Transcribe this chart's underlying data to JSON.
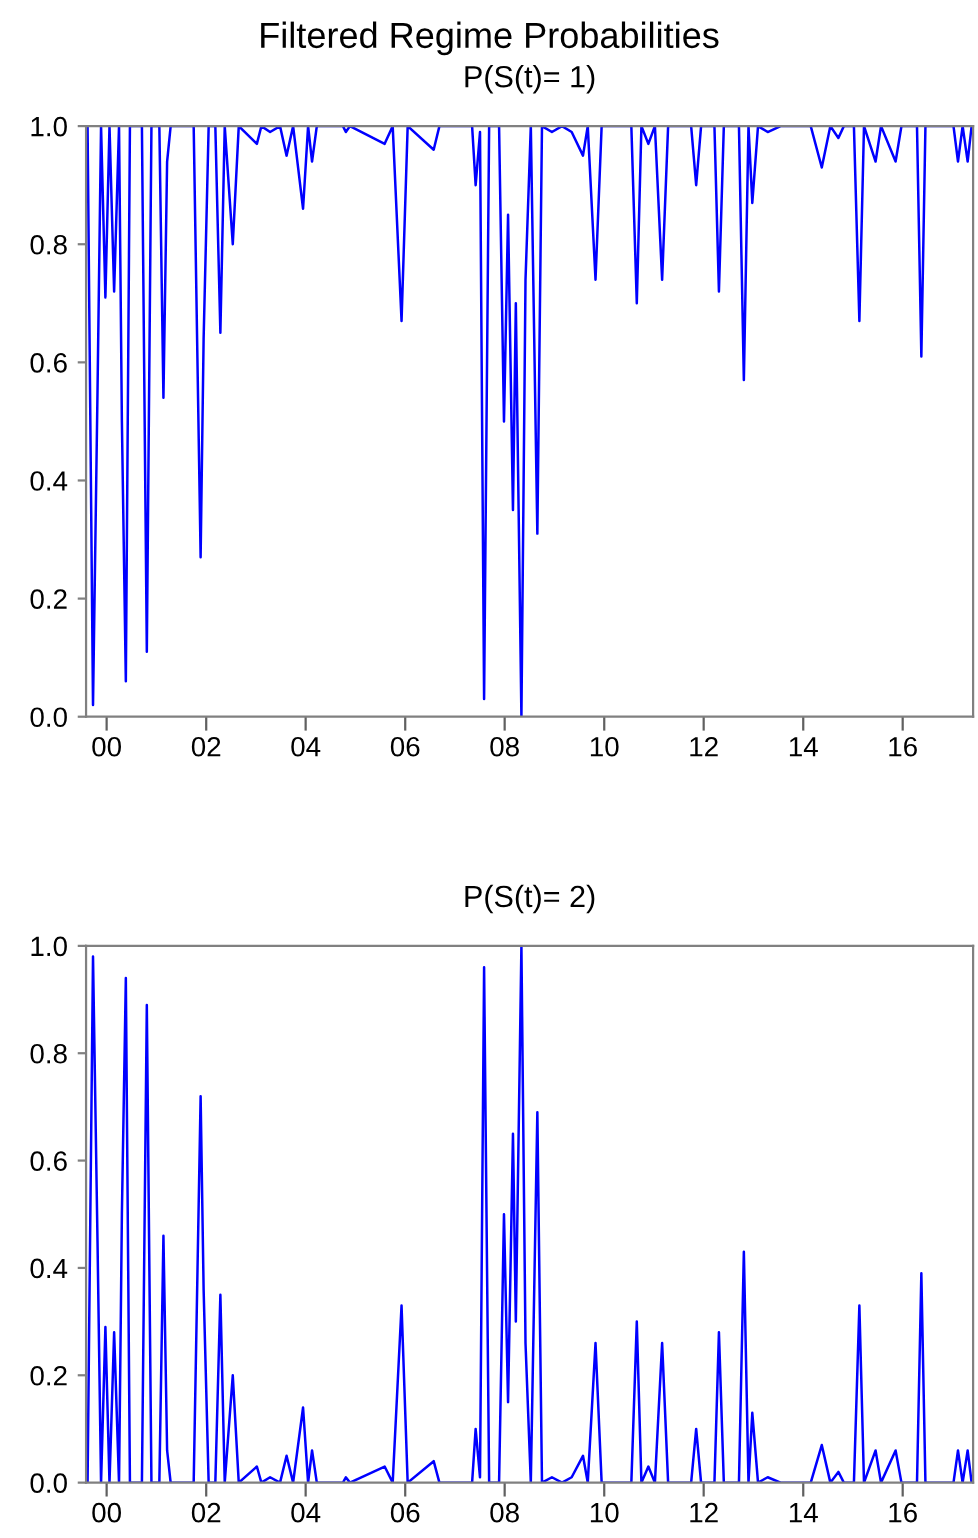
{
  "chart_data": [
    {
      "type": "line",
      "title": "Filtered Regime Probabilities",
      "subtitle": "P(S(t)= 1)",
      "x": [
        "1999-08-14",
        "1999-09-23",
        "1999-10-26",
        "1999-11-21",
        "1999-12-23",
        "2000-01-22",
        "2000-02-25",
        "2000-04-01",
        "2000-04-22",
        "2000-05-21",
        "2000-06-20",
        "2000-09-16",
        "2000-10-22",
        "2000-11-25",
        "2001-01-22",
        "2001-02-21",
        "2001-03-20",
        "2001-04-15",
        "2001-10-01",
        "2001-11-21",
        "2001-12-13",
        "2002-01-19",
        "2002-03-09",
        "2002-04-15",
        "2002-05-17",
        "2002-07-15",
        "2002-08-28",
        "2003-01-08",
        "2003-02-10",
        "2003-04-15",
        "2003-06-27",
        "2003-08-14",
        "2003-10-01",
        "2003-12-13",
        "2004-01-19",
        "2004-02-17",
        "2004-03-23",
        "2004-10-01",
        "2004-10-22",
        "2004-11-21",
        "2005-08-03",
        "2005-10-01",
        "2005-12-05",
        "2006-01-19",
        "2006-07-29",
        "2006-09-09",
        "2007-05-07",
        "2007-06-02",
        "2007-07-04",
        "2007-08-03",
        "2007-09-09",
        "2007-11-21",
        "2007-12-27",
        "2008-01-26",
        "2008-03-02",
        "2008-03-23",
        "2008-05-03",
        "2008-06-02",
        "2008-07-11",
        "2008-08-28",
        "2008-10-01",
        "2008-12-13",
        "2009-02-25",
        "2009-05-07",
        "2009-07-29",
        "2009-09-02",
        "2009-10-29",
        "2009-12-13",
        "2010-07-19",
        "2010-08-28",
        "2010-10-01",
        "2010-11-21",
        "2011-01-08",
        "2011-03-02",
        "2011-04-15",
        "2011-10-01",
        "2011-11-07",
        "2011-12-13",
        "2012-03-20",
        "2012-04-22",
        "2012-05-28",
        "2012-09-16",
        "2012-10-22",
        "2012-11-25",
        "2012-12-23",
        "2013-02-03",
        "2013-04-15",
        "2013-07-19",
        "2014-02-25",
        "2014-05-17",
        "2014-07-19",
        "2014-09-16",
        "2014-10-26",
        "2015-01-08",
        "2015-02-17",
        "2015-03-23",
        "2015-06-16",
        "2015-07-26",
        "2015-11-10",
        "2015-12-23",
        "2016-04-15",
        "2016-05-17",
        "2016-06-16",
        "2017-01-08",
        "2017-02-10",
        "2017-03-16",
        "2017-04-22",
        "2017-05-21"
      ],
      "series": [
        {
          "color": "#0000ff",
          "values": [
            1.0,
            0.02,
            0.55,
            1.0,
            0.71,
            1.0,
            0.72,
            1.0,
            0.5,
            0.06,
            1.0,
            1.0,
            0.11,
            1.0,
            1.0,
            0.54,
            0.94,
            1.0,
            1.0,
            0.27,
            0.64,
            1.0,
            1.0,
            0.65,
            1.0,
            0.8,
            1.0,
            0.97,
            1.0,
            0.99,
            1.0,
            0.95,
            1.0,
            0.86,
            1.0,
            0.94,
            1.0,
            1.0,
            0.99,
            1.0,
            0.97,
            1.0,
            0.67,
            1.0,
            0.96,
            1.0,
            1.0,
            0.9,
            0.99,
            0.03,
            1.0,
            1.0,
            0.5,
            0.85,
            0.35,
            0.7,
            0.0,
            0.74,
            1.0,
            0.31,
            1.0,
            0.99,
            1.0,
            0.99,
            0.95,
            1.0,
            0.74,
            1.0,
            1.0,
            0.7,
            1.0,
            0.97,
            1.0,
            0.74,
            1.0,
            1.0,
            0.9,
            1.0,
            1.0,
            0.72,
            1.0,
            1.0,
            0.57,
            1.0,
            0.87,
            1.0,
            0.99,
            1.0,
            1.0,
            0.93,
            1.0,
            0.98,
            1.0,
            1.0,
            0.67,
            1.0,
            0.94,
            1.0,
            0.94,
            1.0,
            1.0,
            0.61,
            1.0,
            1.0,
            0.94,
            1.0,
            0.94,
            1.0
          ]
        }
      ],
      "xlim": [
        "1999-08-03",
        "2017-06-01"
      ],
      "ylim": [
        0.0,
        1.0
      ],
      "xticks": [
        {
          "value": "2000",
          "label": "00"
        },
        {
          "value": "2002",
          "label": "02"
        },
        {
          "value": "2004",
          "label": "04"
        },
        {
          "value": "2006",
          "label": "06"
        },
        {
          "value": "2008",
          "label": "08"
        },
        {
          "value": "2010",
          "label": "10"
        },
        {
          "value": "2012",
          "label": "12"
        },
        {
          "value": "2014",
          "label": "14"
        },
        {
          "value": "2016",
          "label": "16"
        }
      ],
      "yticks": [
        {
          "value": 0.0,
          "label": "0.0"
        },
        {
          "value": 0.2,
          "label": "0.2"
        },
        {
          "value": 0.4,
          "label": "0.4"
        },
        {
          "value": 0.6,
          "label": "0.6"
        },
        {
          "value": 0.8,
          "label": "0.8"
        },
        {
          "value": 1.0,
          "label": "1.0"
        }
      ],
      "grid": false
    },
    {
      "type": "line",
      "subtitle": "P(S(t)= 2)",
      "x": [
        "1999-08-14",
        "1999-09-23",
        "1999-10-26",
        "1999-11-21",
        "1999-12-23",
        "2000-01-22",
        "2000-02-25",
        "2000-04-01",
        "2000-04-22",
        "2000-05-21",
        "2000-06-20",
        "2000-09-16",
        "2000-10-22",
        "2000-11-25",
        "2001-01-22",
        "2001-02-21",
        "2001-03-20",
        "2001-04-15",
        "2001-10-01",
        "2001-11-21",
        "2001-12-13",
        "2002-01-19",
        "2002-03-09",
        "2002-04-15",
        "2002-05-17",
        "2002-07-15",
        "2002-08-28",
        "2003-01-08",
        "2003-02-10",
        "2003-04-15",
        "2003-06-27",
        "2003-08-14",
        "2003-10-01",
        "2003-12-13",
        "2004-01-19",
        "2004-02-17",
        "2004-03-23",
        "2004-10-01",
        "2004-10-22",
        "2004-11-21",
        "2005-08-03",
        "2005-10-01",
        "2005-12-05",
        "2006-01-19",
        "2006-07-29",
        "2006-09-09",
        "2007-05-07",
        "2007-06-02",
        "2007-07-04",
        "2007-08-03",
        "2007-09-09",
        "2007-11-21",
        "2007-12-27",
        "2008-01-26",
        "2008-03-02",
        "2008-03-23",
        "2008-05-03",
        "2008-06-02",
        "2008-07-11",
        "2008-08-28",
        "2008-10-01",
        "2008-12-13",
        "2009-02-25",
        "2009-05-07",
        "2009-07-29",
        "2009-09-02",
        "2009-10-29",
        "2009-12-13",
        "2010-07-19",
        "2010-08-28",
        "2010-10-01",
        "2010-11-21",
        "2011-01-08",
        "2011-03-02",
        "2011-04-15",
        "2011-10-01",
        "2011-11-07",
        "2011-12-13",
        "2012-03-20",
        "2012-04-22",
        "2012-05-28",
        "2012-09-16",
        "2012-10-22",
        "2012-11-25",
        "2012-12-23",
        "2013-02-03",
        "2013-04-15",
        "2013-07-19",
        "2014-02-25",
        "2014-05-17",
        "2014-07-19",
        "2014-09-16",
        "2014-10-26",
        "2015-01-08",
        "2015-02-17",
        "2015-03-23",
        "2015-06-16",
        "2015-07-26",
        "2015-11-10",
        "2015-12-23",
        "2016-04-15",
        "2016-05-17",
        "2016-06-16",
        "2017-01-08",
        "2017-02-10",
        "2017-03-16",
        "2017-04-22",
        "2017-05-21"
      ],
      "series": [
        {
          "color": "#0000ff",
          "values": [
            0.0,
            0.98,
            0.45,
            0.0,
            0.29,
            0.0,
            0.28,
            0.0,
            0.5,
            0.94,
            0.0,
            0.0,
            0.89,
            0.0,
            0.0,
            0.46,
            0.06,
            0.0,
            0.0,
            0.72,
            0.36,
            0.0,
            0.0,
            0.35,
            0.0,
            0.2,
            0.0,
            0.03,
            0.0,
            0.01,
            0.0,
            0.05,
            0.0,
            0.14,
            0.0,
            0.06,
            0.0,
            0.0,
            0.01,
            0.0,
            0.03,
            0.0,
            0.33,
            0.0,
            0.04,
            0.0,
            0.0,
            0.1,
            0.01,
            0.96,
            0.0,
            0.0,
            0.5,
            0.15,
            0.65,
            0.3,
            1.0,
            0.26,
            0.0,
            0.69,
            0.0,
            0.01,
            0.0,
            0.01,
            0.05,
            0.0,
            0.26,
            0.0,
            0.0,
            0.3,
            0.0,
            0.03,
            0.0,
            0.26,
            0.0,
            0.0,
            0.1,
            0.0,
            0.0,
            0.28,
            0.0,
            0.0,
            0.43,
            0.0,
            0.13,
            0.0,
            0.01,
            0.0,
            0.0,
            0.07,
            0.0,
            0.02,
            0.0,
            0.0,
            0.33,
            0.0,
            0.06,
            0.0,
            0.06,
            0.0,
            0.0,
            0.39,
            0.0,
            0.0,
            0.06,
            0.0,
            0.06,
            0.0
          ]
        }
      ],
      "xlim": [
        "1999-08-03",
        "2017-06-01"
      ],
      "ylim": [
        0.0,
        1.0
      ],
      "xticks": [
        {
          "value": "2000",
          "label": "00"
        },
        {
          "value": "2002",
          "label": "02"
        },
        {
          "value": "2004",
          "label": "04"
        },
        {
          "value": "2006",
          "label": "06"
        },
        {
          "value": "2008",
          "label": "08"
        },
        {
          "value": "2010",
          "label": "10"
        },
        {
          "value": "2012",
          "label": "12"
        },
        {
          "value": "2014",
          "label": "14"
        },
        {
          "value": "2016",
          "label": "16"
        }
      ],
      "yticks": [
        {
          "value": 0.0,
          "label": "0.0"
        },
        {
          "value": 0.2,
          "label": "0.2"
        },
        {
          "value": 0.4,
          "label": "0.4"
        },
        {
          "value": 0.6,
          "label": "0.6"
        },
        {
          "value": 0.8,
          "label": "0.8"
        },
        {
          "value": 1.0,
          "label": "1.0"
        }
      ],
      "grid": false
    }
  ]
}
